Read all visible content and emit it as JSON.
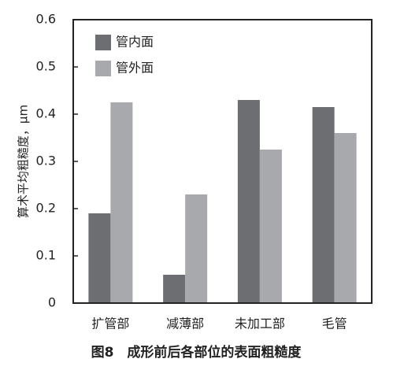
{
  "chart_data": {
    "type": "bar",
    "title": "图8　成形前后各部位的表面粗糙度",
    "y_label": "算术平均粗糙度，μm",
    "categories": [
      "扩管部",
      "减薄部",
      "未加工部",
      "毛管"
    ],
    "series": [
      {
        "name": "管内面",
        "color": "#6d6e71",
        "values": [
          0.19,
          0.06,
          0.43,
          0.415
        ]
      },
      {
        "name": "管外面",
        "color": "#a7a9ac",
        "values": [
          0.425,
          0.23,
          0.325,
          0.36
        ]
      }
    ],
    "ylim": [
      0,
      0.6
    ],
    "yticks": [
      0,
      0.1,
      0.2,
      0.3,
      0.4,
      0.5,
      0.6
    ],
    "legend": "upper-left"
  }
}
